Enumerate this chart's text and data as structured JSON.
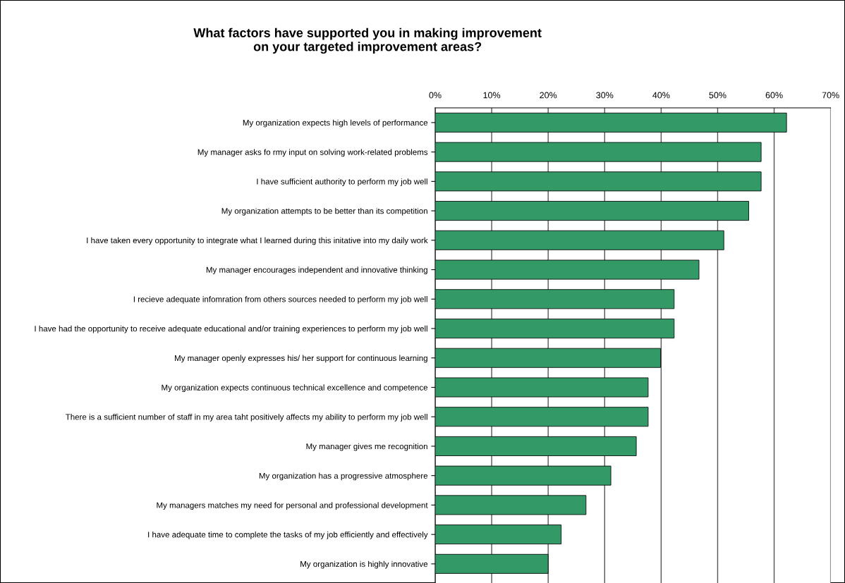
{
  "chart_data": {
    "type": "bar",
    "orientation": "horizontal",
    "title": "What factors have supported you in making improvement\non your targeted improvement areas?",
    "categories": [
      "My organization expects high levels of performance",
      "My manager asks fo rmy input on solving work-related problems",
      "I have sufficient authority to perform my job well",
      "My organization attempts to be better than its competition",
      "I have taken every opportunity to integrate what I learned during this initative into my daily work",
      "My manager encourages independent and innovative thinking",
      "I recieve adequate infomration from others sources needed to perform my job well",
      "I have had the opportunity to receive adequate educational and/or training experiences to perform my job well",
      "My manager openly expresses his/ her support for continuous learning",
      "My organization expects continuous technical excellence and competence",
      "There is a sufficient number of staff in my area taht positively affects my ability to perform my job well",
      "My manager gives me recognition",
      "My organization has a progressive atmosphere",
      "My managers matches my need for personal and professional development",
      "I have adequate time to complete the tasks of my job efficiently and effectively",
      "My organization is highly innovative"
    ],
    "values": [
      62.2,
      57.7,
      57.7,
      55.5,
      51.1,
      46.7,
      42.3,
      42.3,
      39.9,
      37.7,
      37.7,
      35.6,
      31.1,
      26.7,
      22.3,
      20.0
    ],
    "color": "#339966",
    "xlim": [
      0,
      70
    ],
    "xticks": [
      {
        "value": 0,
        "label": "0%"
      },
      {
        "value": 10,
        "label": "10%"
      },
      {
        "value": 20,
        "label": "20%"
      },
      {
        "value": 30,
        "label": "30%"
      },
      {
        "value": 40,
        "label": "40%"
      },
      {
        "value": 50,
        "label": "50%"
      },
      {
        "value": 60,
        "label": "60%"
      },
      {
        "value": 70,
        "label": "70%"
      }
    ],
    "grid": "x"
  }
}
